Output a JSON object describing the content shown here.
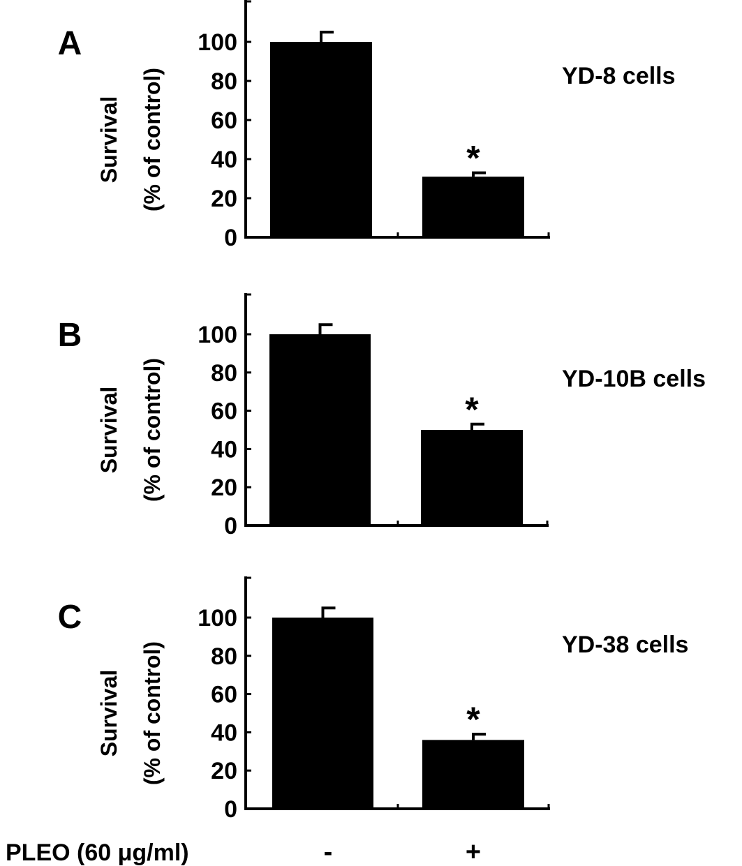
{
  "chart_data": [
    {
      "type": "bar",
      "panel_label": "A",
      "cell_line": "YD-8 cells",
      "ylabel_line1": "Survival",
      "ylabel_line2": "(% of control)",
      "yticks": [
        "0",
        "20",
        "40",
        "60",
        "80",
        "100"
      ],
      "ylim": [
        0,
        120
      ],
      "categories": [
        "-",
        "+"
      ],
      "values": [
        100,
        31
      ],
      "errors": [
        5,
        2
      ],
      "significance": [
        "",
        "*"
      ]
    },
    {
      "type": "bar",
      "panel_label": "B",
      "cell_line": "YD-10B cells",
      "ylabel_line1": "Survival",
      "ylabel_line2": "(% of control)",
      "yticks": [
        "0",
        "20",
        "40",
        "60",
        "80",
        "100"
      ],
      "ylim": [
        0,
        120
      ],
      "categories": [
        "-",
        "+"
      ],
      "values": [
        100,
        50
      ],
      "errors": [
        5,
        3
      ],
      "significance": [
        "",
        "*"
      ]
    },
    {
      "type": "bar",
      "panel_label": "C",
      "cell_line": "YD-38 cells",
      "ylabel_line1": "Survival",
      "ylabel_line2": "(% of control)",
      "yticks": [
        "0",
        "20",
        "40",
        "60",
        "80",
        "100"
      ],
      "ylim": [
        0,
        120
      ],
      "categories": [
        "-",
        "+"
      ],
      "values": [
        100,
        36
      ],
      "errors": [
        5,
        3
      ],
      "significance": [
        "",
        "*"
      ]
    }
  ],
  "treatment_label": "PLEO (60 μg/ml)",
  "treatment_levels": [
    "-",
    "+"
  ]
}
